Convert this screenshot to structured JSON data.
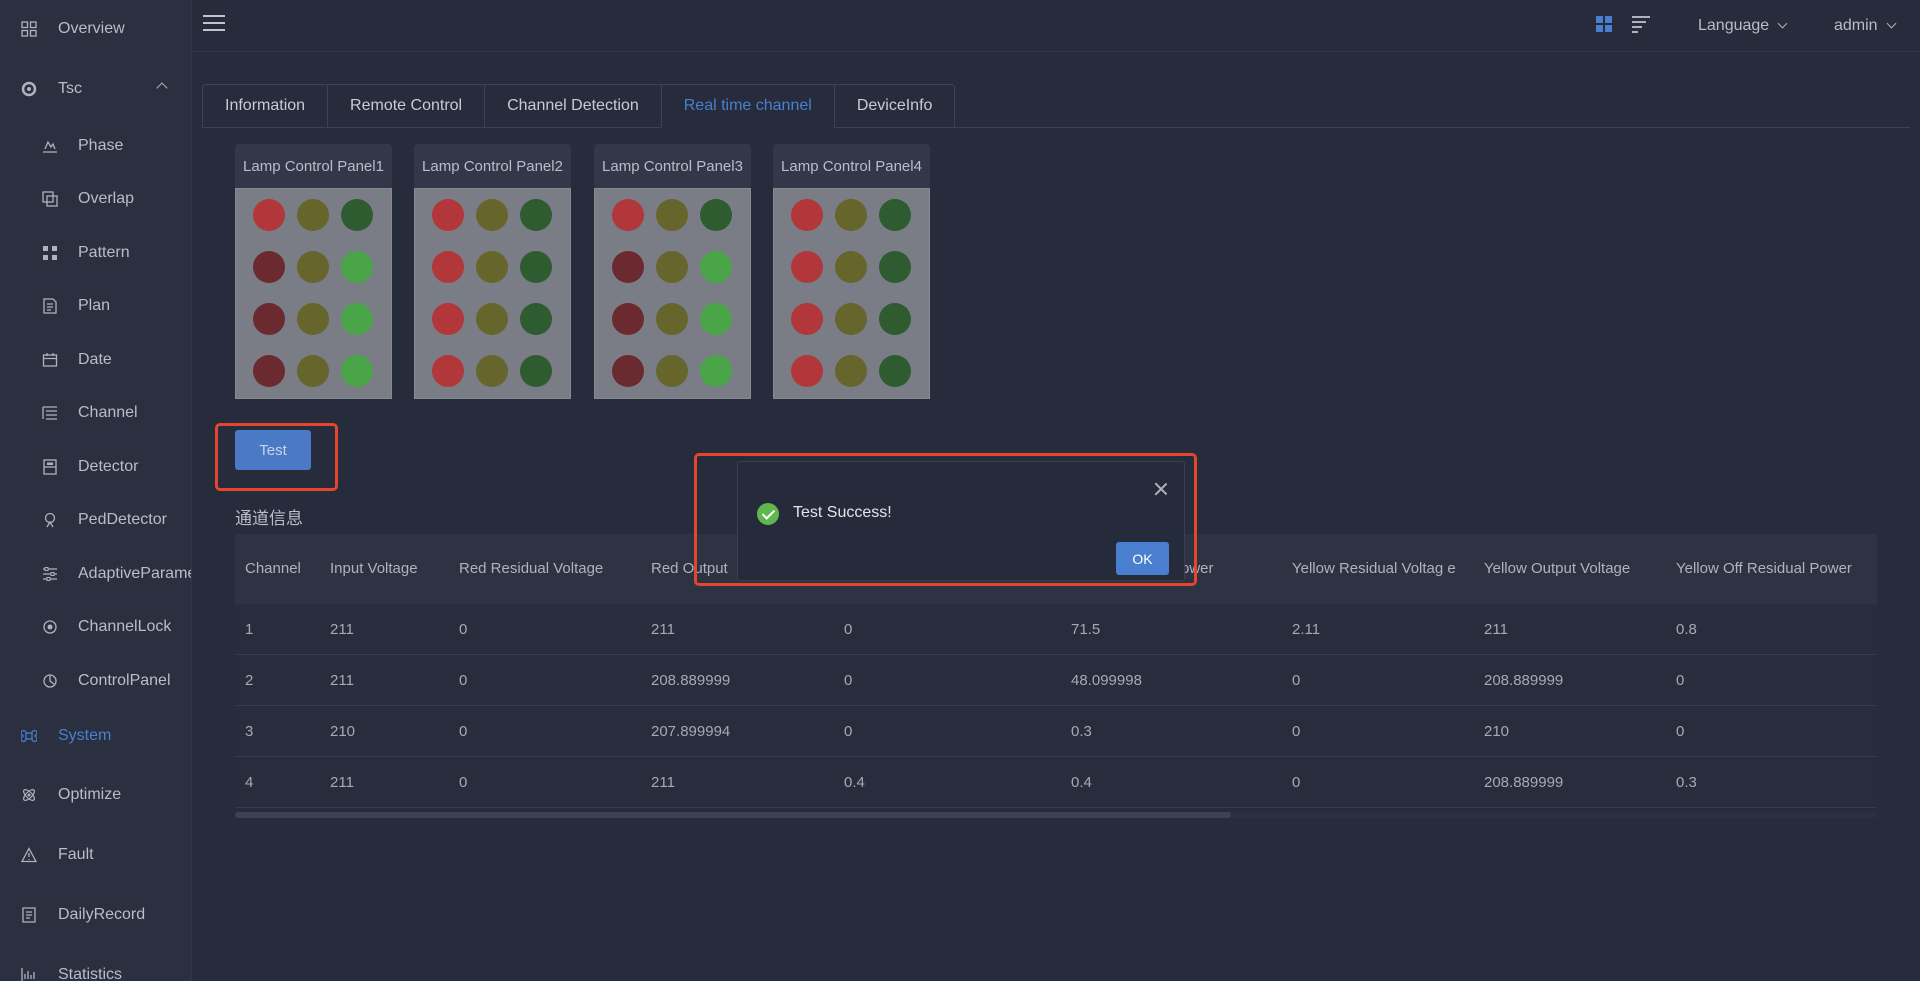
{
  "sidebar": {
    "items": [
      {
        "label": "Overview",
        "icon": "grid-icon"
      },
      {
        "label": "Tsc",
        "icon": "tsc-icon"
      },
      {
        "label": "Phase",
        "icon": "phase-icon"
      },
      {
        "label": "Overlap",
        "icon": "overlap-icon"
      },
      {
        "label": "Pattern",
        "icon": "pattern-icon"
      },
      {
        "label": "Plan",
        "icon": "plan-icon"
      },
      {
        "label": "Date",
        "icon": "calendar-icon"
      },
      {
        "label": "Channel",
        "icon": "channel-icon"
      },
      {
        "label": "Detector",
        "icon": "detector-icon"
      },
      {
        "label": "PedDetector",
        "icon": "ped-detector-icon"
      },
      {
        "label": "AdaptiveParame",
        "icon": "sliders-icon"
      },
      {
        "label": "ChannelLock",
        "icon": "lock-icon"
      },
      {
        "label": "ControlPanel",
        "icon": "control-panel-icon"
      },
      {
        "label": "System",
        "icon": "command-icon"
      },
      {
        "label": "Optimize",
        "icon": "atom-icon"
      },
      {
        "label": "Fault",
        "icon": "warning-icon"
      },
      {
        "label": "DailyRecord",
        "icon": "record-icon"
      },
      {
        "label": "Statistics",
        "icon": "chart-icon"
      }
    ],
    "active": "System"
  },
  "header": {
    "language": "Language",
    "user": "admin"
  },
  "tabs": [
    {
      "label": "Information"
    },
    {
      "label": "Remote Control"
    },
    {
      "label": "Channel Detection"
    },
    {
      "label": "Real time channel"
    },
    {
      "label": "DeviceInfo"
    }
  ],
  "active_tab": "Real time channel",
  "panels": [
    {
      "title": "Lamp Control Panel1",
      "rows": [
        [
          "red",
          "yellow",
          "green"
        ],
        [
          "dark-red",
          "yellow",
          "light-green"
        ],
        [
          "dark-red",
          "yellow",
          "light-green"
        ],
        [
          "dark-red",
          "yellow",
          "light-green"
        ]
      ]
    },
    {
      "title": "Lamp Control Panel2",
      "rows": [
        [
          "red",
          "yellow",
          "green"
        ],
        [
          "red",
          "yellow",
          "green"
        ],
        [
          "red",
          "yellow",
          "green"
        ],
        [
          "red",
          "yellow",
          "green"
        ]
      ]
    },
    {
      "title": "Lamp Control Panel3",
      "rows": [
        [
          "red",
          "yellow",
          "green"
        ],
        [
          "dark-red",
          "yellow",
          "light-green"
        ],
        [
          "dark-red",
          "yellow",
          "light-green"
        ],
        [
          "dark-red",
          "yellow",
          "light-green"
        ]
      ]
    },
    {
      "title": "Lamp Control Panel4",
      "rows": [
        [
          "red",
          "yellow",
          "green"
        ],
        [
          "red",
          "yellow",
          "green"
        ],
        [
          "red",
          "yellow",
          "green"
        ],
        [
          "red",
          "yellow",
          "green"
        ]
      ]
    }
  ],
  "lamp_colors": {
    "red": "#b1373a",
    "dark-red": "#6b2a30",
    "yellow": "#66652c",
    "green": "#2f5b31",
    "light-green": "#4aa548"
  },
  "test_button": "Test",
  "section_title": "通道信息",
  "table": {
    "headers": [
      "Channel",
      "Input Voltage",
      "Red Residual Voltage",
      "Red Output",
      "",
      "Power",
      "Yellow Residual Voltag e",
      "Yellow Output Voltage",
      "Yellow Off Residual Power"
    ],
    "rows": [
      [
        "1",
        "211",
        "0",
        "211",
        "0",
        "71.5",
        "2.11",
        "211",
        "0.8"
      ],
      [
        "2",
        "211",
        "0",
        "208.889999",
        "0",
        "48.099998",
        "0",
        "208.889999",
        "0"
      ],
      [
        "3",
        "210",
        "0",
        "207.899994",
        "0",
        "0.3",
        "0",
        "210",
        "0"
      ],
      [
        "4",
        "211",
        "0",
        "211",
        "0.4",
        "0.4",
        "0",
        "208.889999",
        "0.3"
      ]
    ]
  },
  "dialog": {
    "message": "Test Success!",
    "ok_label": "OK"
  }
}
